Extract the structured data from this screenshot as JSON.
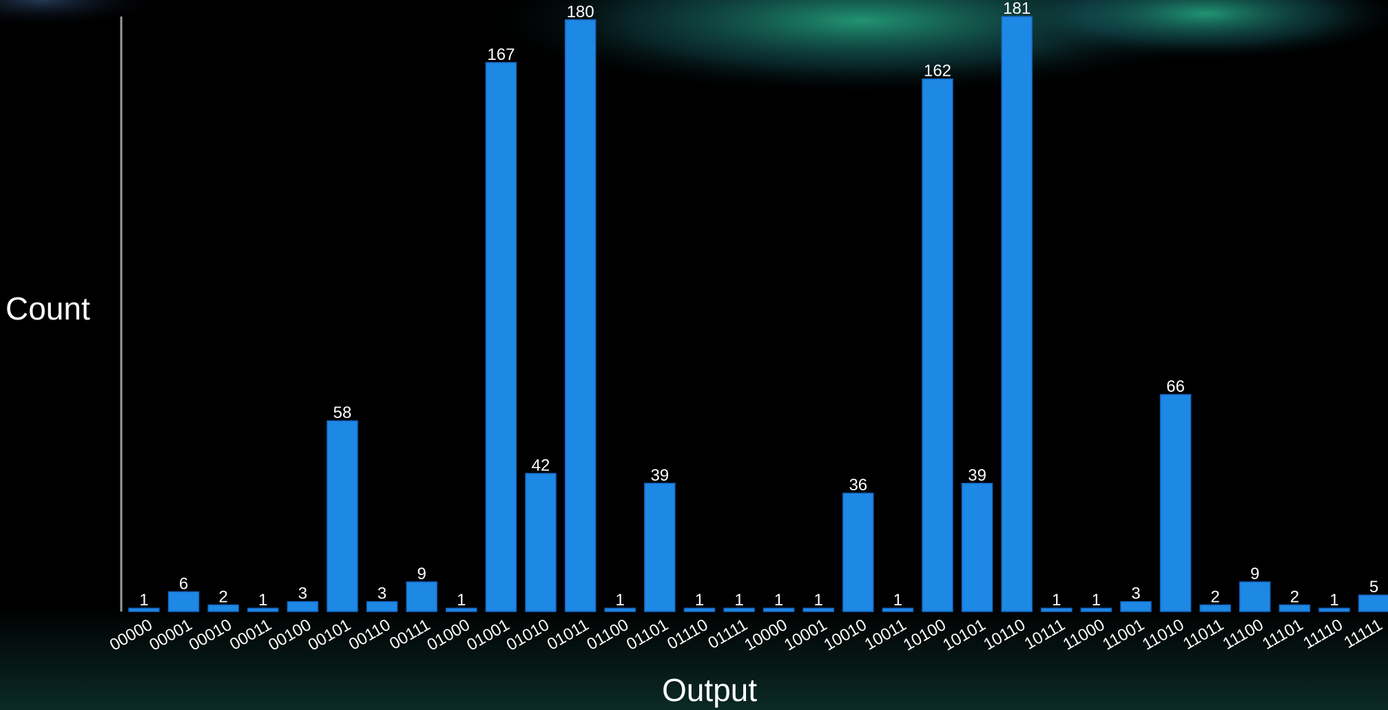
{
  "chart_data": {
    "type": "bar",
    "x_label": "Output",
    "y_label": "Count",
    "categories": [
      "00000",
      "00001",
      "00010",
      "00011",
      "00100",
      "00101",
      "00110",
      "00111",
      "01000",
      "01001",
      "01010",
      "01011",
      "01100",
      "01101",
      "01110",
      "01111",
      "10000",
      "10001",
      "10010",
      "10011",
      "10100",
      "10101",
      "10110",
      "10111",
      "11000",
      "11001",
      "11010",
      "11011",
      "11100",
      "11101",
      "11110",
      "11111"
    ],
    "values": [
      1,
      6,
      2,
      1,
      3,
      58,
      3,
      9,
      1,
      167,
      42,
      180,
      1,
      39,
      1,
      1,
      1,
      1,
      36,
      1,
      162,
      39,
      181,
      1,
      1,
      3,
      66,
      2,
      9,
      2,
      1,
      5
    ],
    "color": "#1e88e5"
  }
}
